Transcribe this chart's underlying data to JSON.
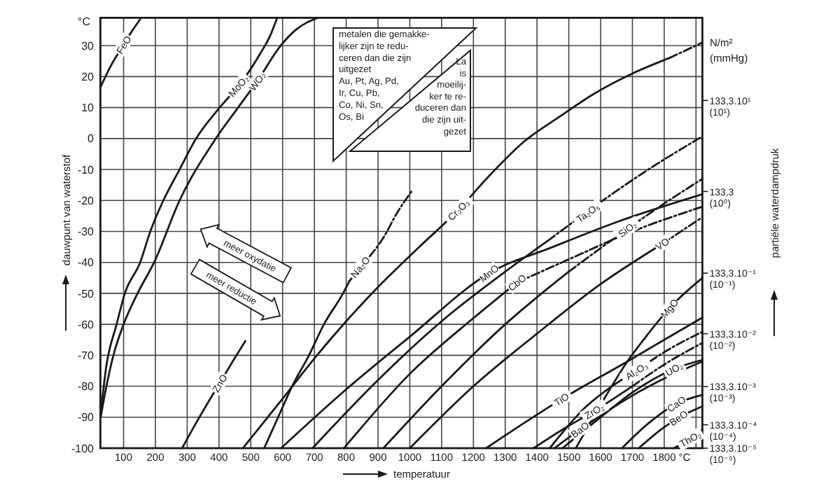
{
  "chart_data": {
    "type": "line",
    "xlabel": "temperatuur",
    "ylabel": "dauwpunt van waterstof",
    "xlim": [
      27,
      1920
    ],
    "ylim": [
      -100,
      39
    ],
    "xticks": [
      100,
      200,
      300,
      400,
      500,
      600,
      700,
      800,
      900,
      1000,
      1100,
      1200,
      1300,
      1400,
      1500,
      1600,
      1700,
      1800,
      {
        "value": 1900,
        "label": null
      }
    ],
    "yticks": [
      -100,
      -90,
      -80,
      -70,
      -60,
      -50,
      -40,
      -30,
      -20,
      -10,
      0,
      10,
      20,
      30
    ],
    "grid": true,
    "series": [
      {
        "color": "#1a1a1a",
        "line_style": "solid",
        "x": [
          27,
          60,
          100,
          125,
          152
        ],
        "values": [
          16.5,
          23.5,
          30.3,
          34.5,
          38.5
        ]
      },
      {
        "color": "#1a1a1a",
        "line_style": "solid",
        "x": [
          27,
          45,
          78,
          104,
          152,
          184,
          225,
          276,
          328,
          402,
          461,
          490,
          530,
          560,
          583
        ],
        "values": [
          -90,
          -74,
          -60,
          -50,
          -40,
          -30,
          -20,
          -10,
          0,
          10,
          17,
          21,
          27.5,
          33,
          39
        ]
      },
      {
        "color": "#1a1a1a",
        "line_style": "solid",
        "x": [
          28,
          46,
          68,
          100,
          144,
          196,
          276,
          390,
          460,
          520,
          594,
          640,
          711
        ],
        "values": [
          -90,
          -80,
          -70,
          -60,
          -50,
          -40,
          -20,
          0,
          10,
          18.5,
          30,
          35,
          39
        ]
      },
      {
        "color": "#1a1a1a",
        "line_style": "solid",
        "x": [
          284,
          330,
          402,
          440,
          483
        ],
        "values": [
          -100,
          -91.5,
          -79,
          -72.5,
          -65.4
        ]
      },
      {
        "color": "#1a1a1a",
        "line_style": "solid",
        "x": [
          542,
          586,
          630,
          683,
          730,
          790,
          810
        ],
        "values": [
          -100,
          -90,
          -80,
          -70,
          -60,
          -50,
          -46
        ]
      },
      {
        "color": "#1a1a1a",
        "line_style": "dashed",
        "x": [
          810,
          850,
          917,
          960,
          1006
        ],
        "values": [
          -46,
          -41,
          -32,
          -24,
          -17
        ]
      },
      {
        "color": "#1a1a1a",
        "line_style": "solid",
        "x": [
          475,
          600,
          700,
          800,
          900,
          1030,
          1153,
          1250,
          1359,
          1470,
          1580,
          1700,
          1816
        ],
        "values": [
          -100,
          -84,
          -71,
          -59,
          -48,
          -35,
          -23,
          -12,
          -1,
          7,
          14.5,
          21,
          26
        ]
      },
      {
        "color": "#1a1a1a",
        "line_style": "dashed",
        "x": [
          1816,
          1920
        ],
        "values": [
          26,
          31
        ]
      },
      {
        "color": "#1a1a1a",
        "line_style": "solid",
        "x": [
          595,
          800,
          1000,
          1249,
          1450,
          1650,
          1920
        ],
        "values": [
          -100,
          -81,
          -64,
          -43.5,
          -35,
          -27,
          -18
        ]
      },
      {
        "color": "#1a1a1a",
        "line_style": "solid",
        "x": [
          694,
          900,
          1100,
          1300,
          1434
        ],
        "values": [
          -100,
          -78,
          -59,
          -43,
          -33
        ]
      },
      {
        "color": "#1a1a1a",
        "line_style": "dashed",
        "x": [
          1434,
          1750,
          1920
        ],
        "values": [
          -33,
          -10,
          0.7
        ]
      },
      {
        "color": "#1a1a1a",
        "line_style": "solid",
        "x": [
          793,
          1000,
          1200,
          1337
        ],
        "values": [
          -100,
          -76,
          -58,
          -46.5
        ]
      },
      {
        "color": "#1a1a1a",
        "line_style": "dashed",
        "x": [
          1337,
          1500,
          1700,
          1920
        ],
        "values": [
          -46.5,
          -39,
          -30,
          -22
        ]
      },
      {
        "color": "#1a1a1a",
        "line_style": "solid",
        "x": [
          917,
          1100,
          1300,
          1500
        ],
        "values": [
          -100,
          -80,
          -60,
          -43
        ]
      },
      {
        "color": "#1a1a1a",
        "line_style": "dashed",
        "x": [
          1500,
          1684,
          1800,
          1920
        ],
        "values": [
          -43,
          -29.2,
          -21,
          -13
        ]
      },
      {
        "color": "#1a1a1a",
        "line_style": "solid",
        "x": [
          1000,
          1200,
          1400,
          1600,
          1794
        ],
        "values": [
          -100,
          -80,
          -63,
          -47,
          -34
        ]
      },
      {
        "color": "#1a1a1a",
        "line_style": "dashed",
        "x": [
          1794,
          1920
        ],
        "values": [
          -34,
          -25.4
        ]
      },
      {
        "color": "#1a1a1a",
        "line_style": "solid",
        "x": [
          1240,
          1477,
          1684,
          1800,
          1920
        ],
        "values": [
          -100,
          -84.2,
          -72,
          -65,
          -57.8
        ]
      },
      {
        "color": "#1a1a1a",
        "line_style": "solid",
        "x": [
          1522,
          1600,
          1684,
          1750,
          1816,
          1920
        ],
        "values": [
          -100,
          -86,
          -72,
          -63,
          -54.8,
          -45
        ]
      },
      {
        "color": "#1a1a1a",
        "line_style": "solid",
        "x": [
          1440,
          1550,
          1650,
          1713
        ],
        "values": [
          -100,
          -87,
          -79,
          -75
        ]
      },
      {
        "color": "#1a1a1a",
        "line_style": "dashed",
        "x": [
          1713,
          1800,
          1920
        ],
        "values": [
          -75,
          -69,
          -62.4
        ]
      },
      {
        "color": "#1a1a1a",
        "line_style": "solid",
        "x": [
          1389,
          1480,
          1580,
          1700
        ],
        "values": [
          -100,
          -94,
          -88,
          -80
        ]
      },
      {
        "color": "#1a1a1a",
        "line_style": "dashed",
        "x": [
          1700,
          1800,
          1920
        ],
        "values": [
          -80,
          -73,
          -66
        ]
      },
      {
        "color": "#1a1a1a",
        "line_style": "solid",
        "x": [
          1480,
          1600,
          1700,
          1831,
          1920
        ],
        "values": [
          -100,
          -90,
          -82,
          -74.4,
          -71.5
        ]
      },
      {
        "color": "#1a1a1a",
        "line_style": "solid",
        "x": [
          1455,
          1535,
          1600,
          1700,
          1800,
          1920
        ],
        "values": [
          -100,
          -94,
          -89.5,
          -83,
          -77.5,
          -72
        ]
      },
      {
        "color": "#1a1a1a",
        "line_style": "solid",
        "x": [
          1667,
          1750,
          1838,
          1920
        ],
        "values": [
          -100,
          -92,
          -85.7,
          -82.8
        ]
      },
      {
        "color": "#1a1a1a",
        "line_style": "solid",
        "x": [
          1720,
          1790,
          1845,
          1920
        ],
        "values": [
          -100,
          -94,
          -90.2,
          -86.5
        ]
      },
      {
        "color": "#1a1a1a",
        "line_style": "solid",
        "x": [
          1830,
          1882,
          1920
        ],
        "values": [
          -100,
          -97,
          -94
        ]
      }
    ],
    "annotations": [
      "°C",
      "°C",
      "N/m²\n(mmHg)",
      "metalen die gemakke-\nlijker zijn te redu-\nceren dan die zijn\nuitgezet\nAu, Pt, Ag, Pd,\nIr, Cu, Pb,\nCo, Ni, Sn,\nOs, Bi",
      "La\nis\nmoeilij-\nker te re-\nduceren dan\ndie zijn uit-\ngezet",
      "meer oxydatie",
      "meer reductie",
      "partiële waterdampdruk",
      "133,3.10¹\n(10¹)",
      "133,3\n(10⁰)",
      "133,3.10⁻¹\n(10⁻¹)",
      "133,3.10⁻²\n(10⁻²)",
      "133,3.10⁻³\n(10⁻³)",
      "133,3.10⁻⁴\n(10⁻⁴)",
      "133,3.10⁻⁵\n(10⁻⁵)",
      {
        "text": "FeO",
        "x": 100,
        "y": 30.3
      },
      {
        "text": "MoO₂",
        "x": 461,
        "y": 17
      },
      {
        "text": "WO₂",
        "x": 520,
        "y": 18.5
      },
      {
        "text": "ZnO",
        "x": 402,
        "y": -79
      },
      {
        "text": "Na₂O",
        "x": 844,
        "y": -41.5
      },
      {
        "text": "Cr₂O₃",
        "x": 1153,
        "y": -23
      },
      {
        "text": "MnO",
        "x": 1249,
        "y": -43.5
      },
      {
        "text": "CbO",
        "x": 1337,
        "y": -46.5
      },
      {
        "text": "Ta₂O₅",
        "x": 1560,
        "y": -23.9
      },
      {
        "text": "SiO₂",
        "x": 1684,
        "y": -29.2
      },
      {
        "text": "VO",
        "x": 1794,
        "y": -34
      },
      {
        "text": "MgO",
        "x": 1816,
        "y": -54.8
      },
      {
        "text": "Al₂O₃",
        "x": 1713,
        "y": -75
      },
      {
        "text": "TiO",
        "x": 1477,
        "y": -84.2
      },
      {
        "text": "ZrO₂",
        "x": 1580,
        "y": -88
      },
      {
        "text": "BaO",
        "x": 1535,
        "y": -94
      },
      {
        "text": "UO₂",
        "x": 1831,
        "y": -74.4
      },
      {
        "text": "CaO",
        "x": 1838,
        "y": -85.7
      },
      {
        "text": "BeO",
        "x": 1845,
        "y": -90.2
      },
      {
        "text": "ThO₂",
        "x": 1882,
        "y": -97
      }
    ]
  }
}
